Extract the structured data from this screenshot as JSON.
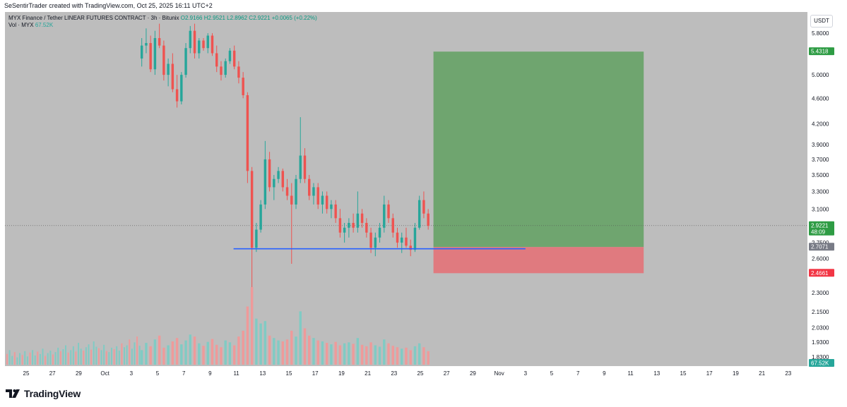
{
  "header": {
    "text": "SeSentirTrader created with TradingView.com, Oct 25, 2025 16:11 UTC+2"
  },
  "legend": {
    "symbol": "MYX Finance / Tether LINEAR FUTURES CONTRACT · 3h · Bitunix",
    "ohlc": "O2.9166  H2.9521  L2.8962  C2.9221  +0.0065 (+0.22%)",
    "vol_label": "Vol · MYX",
    "vol_value": "67.52K"
  },
  "currency_button": "USDT",
  "footer": {
    "logo_text": "TradingView"
  },
  "colors": {
    "up": "#26a69a",
    "down": "#ef5350",
    "target_zone": "#6fa56f",
    "stop_zone": "#e07a7f",
    "support_line": "#2962ff",
    "background": "#bdbdbd"
  },
  "chart_data": {
    "type": "candlestick",
    "symbol": "MYX Finance / Tether LINEAR FUTURES CONTRACT",
    "timeframe": "3h",
    "exchange": "Bitunix",
    "y_scale": "log",
    "ylim": [
      1.78,
      6.1
    ],
    "y_ticks": [
      "5.8000",
      "5.0000",
      "4.6000",
      "4.2000",
      "3.9000",
      "3.7000",
      "3.5000",
      "3.3000",
      "3.1000",
      "2.7500",
      "2.6000",
      "2.3000",
      "2.1500",
      "2.0300",
      "1.9300",
      "1.8300"
    ],
    "x_ticks": [
      "25",
      "27",
      "29",
      "Oct",
      "3",
      "5",
      "7",
      "9",
      "11",
      "13",
      "15",
      "17",
      "19",
      "21",
      "23",
      "25",
      "27",
      "29",
      "Nov",
      "3",
      "5",
      "7",
      "9",
      "11",
      "13",
      "15",
      "17",
      "19",
      "21",
      "23"
    ],
    "price_badges": [
      {
        "label": "5.4318",
        "value": 5.4318,
        "color": "#2e9c44"
      },
      {
        "label": "2.9221",
        "value": 2.9221,
        "color": "#2e9c44",
        "sub": "48:09"
      },
      {
        "label": "2.7071",
        "value": 2.7071,
        "color": "#787b86"
      },
      {
        "label": "2.4661",
        "value": 2.4661,
        "color": "#f23645"
      },
      {
        "label": "67.52K",
        "value": 67520,
        "color": "#26a69a"
      }
    ],
    "last_price": 2.9221,
    "support_line": {
      "value": 2.69,
      "from_date": "Oct 11",
      "to_date": "Nov 3"
    },
    "long_position": {
      "entry": 2.7071,
      "target": 5.4318,
      "stop": 2.4661,
      "from_date": "Oct 26",
      "to_date": "Nov 12"
    },
    "candles": [
      [
        5.3,
        5.7,
        5.15,
        5.55
      ],
      [
        5.55,
        5.9,
        5.4,
        5.6
      ],
      [
        5.6,
        5.75,
        5.05,
        5.1
      ],
      [
        5.1,
        5.85,
        5.0,
        5.7
      ],
      [
        5.7,
        6.0,
        5.5,
        5.55
      ],
      [
        5.55,
        5.65,
        4.9,
        5.0
      ],
      [
        5.0,
        5.3,
        4.8,
        5.2
      ],
      [
        5.2,
        5.4,
        4.7,
        4.75
      ],
      [
        4.75,
        5.0,
        4.45,
        4.55
      ],
      [
        4.55,
        5.05,
        4.5,
        5.0
      ],
      [
        5.0,
        5.6,
        4.95,
        5.5
      ],
      [
        5.5,
        5.95,
        5.4,
        5.85
      ],
      [
        5.85,
        6.0,
        5.3,
        5.4
      ],
      [
        5.4,
        5.7,
        5.3,
        5.65
      ],
      [
        5.65,
        5.7,
        5.45,
        5.5
      ],
      [
        5.5,
        5.8,
        5.4,
        5.75
      ],
      [
        5.75,
        5.8,
        5.35,
        5.4
      ],
      [
        5.4,
        5.55,
        5.05,
        5.15
      ],
      [
        5.15,
        5.25,
        4.9,
        5.0
      ],
      [
        5.0,
        5.3,
        4.95,
        5.25
      ],
      [
        5.25,
        5.5,
        5.2,
        5.45
      ],
      [
        5.45,
        5.55,
        5.1,
        5.15
      ],
      [
        5.15,
        5.25,
        4.85,
        4.95
      ],
      [
        4.95,
        5.05,
        4.6,
        4.65
      ],
      [
        4.65,
        4.7,
        3.4,
        3.55
      ],
      [
        3.55,
        3.6,
        2.05,
        2.7
      ],
      [
        2.7,
        2.95,
        2.66,
        2.88
      ],
      [
        2.88,
        3.2,
        2.85,
        3.15
      ],
      [
        3.15,
        3.95,
        3.1,
        3.7
      ],
      [
        3.7,
        3.8,
        3.3,
        3.35
      ],
      [
        3.35,
        3.5,
        3.2,
        3.45
      ],
      [
        3.45,
        3.6,
        3.4,
        3.55
      ],
      [
        3.55,
        3.58,
        3.3,
        3.35
      ],
      [
        3.35,
        3.45,
        3.2,
        3.25
      ],
      [
        3.25,
        3.4,
        2.55,
        3.15
      ],
      [
        3.15,
        3.5,
        3.1,
        3.45
      ],
      [
        3.45,
        4.3,
        3.4,
        3.75
      ],
      [
        3.75,
        3.85,
        3.4,
        3.45
      ],
      [
        3.45,
        3.5,
        3.2,
        3.25
      ],
      [
        3.25,
        3.4,
        3.15,
        3.35
      ],
      [
        3.35,
        3.4,
        3.1,
        3.15
      ],
      [
        3.15,
        3.3,
        3.05,
        3.25
      ],
      [
        3.25,
        3.3,
        3.05,
        3.1
      ],
      [
        3.1,
        3.2,
        3.0,
        3.15
      ],
      [
        3.15,
        3.2,
        2.95,
        3.0
      ],
      [
        3.0,
        3.1,
        2.8,
        2.85
      ],
      [
        2.85,
        2.95,
        2.75,
        2.9
      ],
      [
        2.9,
        3.0,
        2.8,
        2.95
      ],
      [
        2.95,
        3.05,
        2.85,
        2.9
      ],
      [
        2.9,
        3.3,
        2.85,
        3.05
      ],
      [
        3.05,
        3.1,
        2.9,
        2.95
      ],
      [
        2.95,
        3.0,
        2.8,
        2.85
      ],
      [
        2.85,
        2.9,
        2.65,
        2.7
      ],
      [
        2.7,
        2.85,
        2.62,
        2.8
      ],
      [
        2.8,
        2.95,
        2.75,
        2.9
      ],
      [
        2.9,
        3.25,
        2.85,
        3.15
      ],
      [
        3.15,
        3.2,
        2.95,
        3.0
      ],
      [
        3.0,
        3.05,
        2.8,
        2.85
      ],
      [
        2.85,
        2.9,
        2.7,
        2.75
      ],
      [
        2.75,
        2.85,
        2.65,
        2.8
      ],
      [
        2.8,
        2.9,
        2.7,
        2.72
      ],
      [
        2.72,
        2.78,
        2.62,
        2.68
      ],
      [
        2.68,
        2.95,
        2.66,
        2.9
      ],
      [
        2.9,
        3.25,
        2.88,
        3.2
      ],
      [
        3.2,
        3.3,
        3.0,
        3.05
      ],
      [
        3.05,
        3.1,
        2.88,
        2.92
      ]
    ],
    "volumes": [
      30,
      45,
      38,
      52,
      60,
      35,
      40,
      48,
      55,
      42,
      50,
      62,
      58,
      44,
      39,
      47,
      53,
      41,
      36,
      50,
      46,
      40,
      58,
      70,
      120,
      160,
      95,
      85,
      90,
      60,
      55,
      50,
      48,
      52,
      70,
      58,
      110,
      75,
      60,
      55,
      50,
      48,
      45,
      42,
      47,
      40,
      44,
      46,
      43,
      55,
      41,
      38,
      46,
      40,
      37,
      52,
      44,
      39,
      36,
      33,
      35,
      30,
      38,
      44,
      36,
      28
    ]
  }
}
